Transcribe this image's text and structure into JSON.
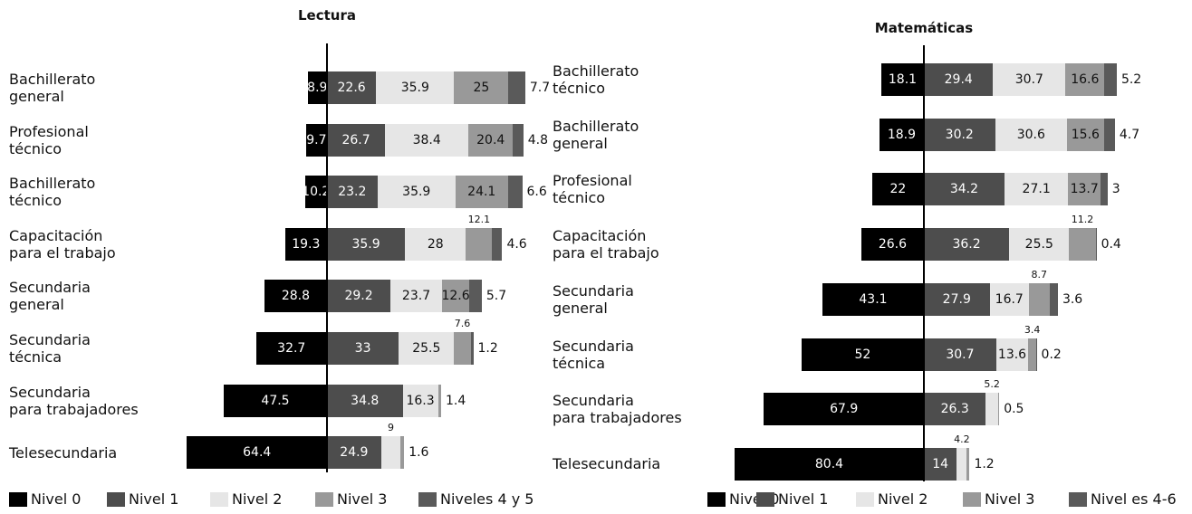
{
  "chart_data": [
    {
      "type": "bar",
      "orientation": "horizontal",
      "stacked": true,
      "title": "Lectura",
      "categories": [
        "Bachillerato\ngeneral",
        "Profesional\ntécnico",
        "Bachillerato\ntécnico",
        "Capacitación\npara el trabajo",
        "Secundaria\ngeneral",
        "Secundaria\ntécnica",
        "Secundaria\npara trabajadores",
        "Telesecundaria"
      ],
      "series": [
        {
          "name": "Nivel 0",
          "color": "#000000",
          "values": [
            8.9,
            9.7,
            10.2,
            19.3,
            28.8,
            32.7,
            47.5,
            64.4
          ]
        },
        {
          "name": "Nivel 1",
          "color": "#4d4d4d",
          "values": [
            22.6,
            26.7,
            23.2,
            35.9,
            29.2,
            33,
            34.8,
            24.9
          ]
        },
        {
          "name": "Nivel 2",
          "color": "#e6e6e6",
          "values": [
            35.9,
            38.4,
            35.9,
            28,
            23.7,
            25.5,
            16.3,
            9
          ]
        },
        {
          "name": "Nivel 3",
          "color": "#999999",
          "values": [
            25,
            20.4,
            24.1,
            12.1,
            12.6,
            7.6,
            1.4,
            1.6
          ]
        },
        {
          "name": "Niveles 4 y 5",
          "color": "#5a5a5a",
          "values": [
            7.7,
            4.8,
            6.6,
            4.6,
            5.7,
            1.2,
            null,
            null
          ]
        }
      ]
    },
    {
      "type": "bar",
      "orientation": "horizontal",
      "stacked": true,
      "title": "Matemáticas",
      "categories": [
        "Bachillerato\ntécnico",
        "Bachillerato\ngeneral",
        "Profesional\ntécnico",
        "Capacitación\npara el trabajo",
        "Secundaria\ngeneral",
        "Secundaria\ntécnica",
        "Secundaria\npara trabajadores",
        "Telesecundaria"
      ],
      "series": [
        {
          "name": "Nivel 0",
          "color": "#000000",
          "values": [
            18.1,
            18.9,
            22,
            26.6,
            43.1,
            52,
            67.9,
            80.4
          ]
        },
        {
          "name": "Nivel 1",
          "color": "#4d4d4d",
          "values": [
            29.4,
            30.2,
            34.2,
            36.2,
            27.9,
            30.7,
            26.3,
            14
          ]
        },
        {
          "name": "Nivel 2",
          "color": "#e6e6e6",
          "values": [
            30.7,
            30.6,
            27.1,
            25.5,
            16.7,
            13.6,
            5.2,
            4.2
          ]
        },
        {
          "name": "Nivel 3",
          "color": "#999999",
          "values": [
            16.6,
            15.6,
            13.7,
            11.2,
            8.7,
            3.4,
            0.5,
            1.2
          ]
        },
        {
          "name": "Nivel es 4-6",
          "color": "#5a5a5a",
          "values": [
            5.2,
            4.7,
            3,
            0.4,
            3.6,
            0.2,
            null,
            null
          ]
        }
      ]
    }
  ]
}
